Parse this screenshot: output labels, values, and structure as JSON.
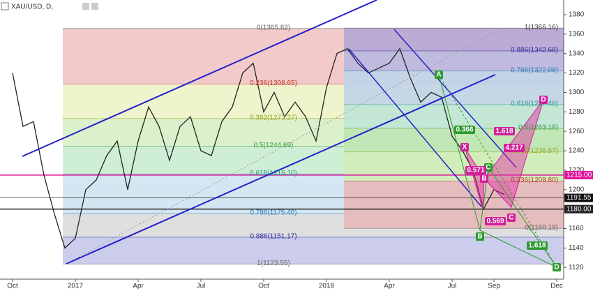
{
  "chart_data": {
    "type": "line",
    "title": "XAU/USD, D,",
    "categories": [
      "Oct",
      null,
      null,
      null,
      null,
      null,
      "2017",
      null,
      null,
      null,
      null,
      null,
      "Apr",
      null,
      null,
      null,
      null,
      null,
      "Jul",
      null,
      null,
      null,
      null,
      null,
      "Oct",
      null,
      null,
      null,
      null,
      null,
      "2018",
      null,
      null,
      null,
      null,
      null,
      "Apr",
      null,
      null,
      null,
      null,
      null,
      "Jul",
      null,
      null,
      null,
      "Sep",
      null,
      null,
      null,
      null,
      null,
      "Dec"
    ],
    "series": [
      {
        "name": "XAU/USD",
        "color": "#222222",
        "values": [
          1320,
          1265,
          1270,
          1215,
          1175,
          1140,
          1150,
          1200,
          1210,
          1235,
          1250,
          1200,
          1250,
          1285,
          1265,
          1230,
          1265,
          1275,
          1240,
          1235,
          1270,
          1285,
          1320,
          1330,
          1280,
          1300,
          1275,
          1290,
          1275,
          1250,
          1305,
          1340,
          1345,
          1330,
          1320,
          1325,
          1330,
          1345,
          1315,
          1290,
          1300,
          1295,
          1255,
          1240,
          1220,
          1180,
          1200,
          1195,
          null,
          null,
          null,
          null,
          null
        ]
      }
    ],
    "ylim": [
      1108,
      1395
    ],
    "yticks": [
      1120,
      1140,
      1160,
      1180,
      1200,
      1220,
      1240,
      1260,
      1280,
      1300,
      1320,
      1340,
      1360,
      1380
    ],
    "fib_left": [
      {
        "value": 1365.82,
        "label": "0(1365.82)",
        "color": "#f2c4c4",
        "text_color": "#666666"
      },
      {
        "value": 1308.65,
        "label": "0.236(1308.65)",
        "color": "#eef3c6",
        "text_color": "#c0392b"
      },
      {
        "value": 1273.27,
        "label": "0.382(1273.27)",
        "color": "#d6f0c6",
        "text_color": "#9aa51f"
      },
      {
        "value": 1244.69,
        "label": "0.5(1244.69)",
        "color": "#c9ecd2",
        "text_color": "#3c9a3c"
      },
      {
        "value": 1216.1,
        "label": "0.618(1216.10)",
        "color": "#cfe3f1",
        "text_color": "#2a9a8a"
      },
      {
        "value": 1175.4,
        "label": "0.786(1175.40)",
        "color": "#dcdcdc",
        "text_color": "#2e7cb8"
      },
      {
        "value": 1151.17,
        "label": "0.886(1151.17)",
        "color": "#c6c8ea",
        "text_color": "#2a2a9a"
      },
      {
        "value": 1123.55,
        "label": "1(1123.55)",
        "color": "#c6c8ea",
        "text_color": "#666666"
      }
    ],
    "fib_right": [
      {
        "value": 1366.16,
        "label": "1(1366.16)",
        "color": "#b6a8d6",
        "text_color": "#444444"
      },
      {
        "value": 1342.68,
        "label": "0.886(1342.68)",
        "color": "#b9b8e0",
        "text_color": "#2a2a9a"
      },
      {
        "value": 1322.08,
        "label": "0.786(1322.08)",
        "color": "#c0d4ea",
        "text_color": "#2e7cb8"
      },
      {
        "value": 1287.48,
        "label": "0.618(1287.48)",
        "color": "#bfe6d6",
        "text_color": "#2a9a8a"
      },
      {
        "value": 1263.18,
        "label": "0.5(1263.18)",
        "color": "#bfe6b5",
        "text_color": "#3c9a3c"
      },
      {
        "value": 1238.87,
        "label": "0.382(1238.87)",
        "color": "#d2ecb7",
        "text_color": "#9aa51f"
      },
      {
        "value": 1208.8,
        "label": "0.236(1208.80)",
        "color": "#e8b8b8",
        "text_color": "#c0392b"
      },
      {
        "value": 1160.19,
        "label": "0(1160.19)",
        "color": "#e8b8b8",
        "text_color": "#666666"
      }
    ],
    "price_lines": [
      {
        "value": 1215.0,
        "label": "1215.00",
        "color": "#e0149a"
      },
      {
        "value": 1191.55,
        "label": "1191.55",
        "color": "#111111"
      },
      {
        "value": 1180.0,
        "label": "1180.00",
        "color": "#222222"
      }
    ],
    "annotations": [
      "A",
      "B",
      "C",
      "D",
      "X",
      "B",
      "C",
      "D",
      "0.366",
      "1.618",
      "4.217",
      "0.571",
      "0.569",
      "1.618"
    ]
  }
}
